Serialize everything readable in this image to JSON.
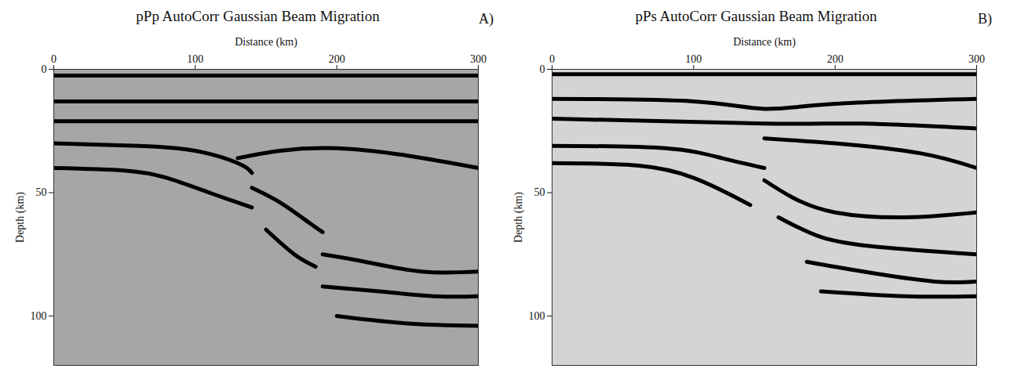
{
  "chart_data": [
    {
      "type": "line",
      "panel_label": "A)",
      "title": "pPp AutoCorr Gaussian Beam Migration",
      "xlabel": "Distance (km)",
      "ylabel": "Depth (km)",
      "xlim": [
        0,
        300
      ],
      "xticks": [
        0,
        100,
        200,
        300
      ],
      "ylim": [
        120,
        0
      ],
      "yticks": [
        0,
        50,
        100
      ],
      "series": [
        {
          "color": "#000000",
          "x": [
            0,
            300
          ],
          "values": [
            2.5,
            2.5
          ]
        },
        {
          "color": "#000000",
          "x": [
            0,
            300
          ],
          "values": [
            13,
            13
          ]
        },
        {
          "color": "#000000",
          "x": [
            0,
            300
          ],
          "values": [
            21,
            21
          ]
        },
        {
          "color": "#000000",
          "x": [
            0,
            60,
            100,
            130,
            140
          ],
          "values": [
            30,
            31,
            33,
            38,
            42
          ]
        },
        {
          "color": "#000000",
          "x": [
            0,
            50,
            80,
            110,
            130,
            140
          ],
          "values": [
            40,
            41,
            44,
            50,
            54,
            56
          ]
        },
        {
          "color": "#000000",
          "x": [
            130,
            160,
            200,
            250,
            300
          ],
          "values": [
            36,
            33,
            32,
            35,
            40
          ]
        },
        {
          "color": "#000000",
          "x": [
            140,
            160,
            180,
            190
          ],
          "values": [
            48,
            54,
            62,
            66
          ]
        },
        {
          "color": "#000000",
          "x": [
            150,
            170,
            185
          ],
          "values": [
            65,
            75,
            80
          ]
        },
        {
          "color": "#000000",
          "x": [
            190,
            220,
            260,
            300
          ],
          "values": [
            75,
            78,
            82,
            82
          ]
        },
        {
          "color": "#000000",
          "x": [
            190,
            230,
            270,
            300
          ],
          "values": [
            88,
            90,
            92,
            92
          ]
        },
        {
          "color": "#000000",
          "x": [
            200,
            250,
            300
          ],
          "values": [
            100,
            103,
            104
          ]
        }
      ]
    },
    {
      "type": "line",
      "panel_label": "B)",
      "title": "pPs AutoCorr Gaussian Beam Migration",
      "xlabel": "Distance (km)",
      "ylabel": "Depth (km)",
      "xlim": [
        0,
        300
      ],
      "xticks": [
        0,
        100,
        200,
        300
      ],
      "ylim": [
        120,
        0
      ],
      "yticks": [
        0,
        50,
        100
      ],
      "series": [
        {
          "color": "#000000",
          "x": [
            0,
            300
          ],
          "values": [
            2,
            2
          ]
        },
        {
          "color": "#000000",
          "x": [
            0,
            100,
            150,
            200,
            300
          ],
          "values": [
            12,
            13,
            16,
            14,
            12
          ]
        },
        {
          "color": "#000000",
          "x": [
            0,
            150,
            220,
            300
          ],
          "values": [
            20,
            22,
            22,
            24
          ]
        },
        {
          "color": "#000000",
          "x": [
            0,
            80,
            120,
            150
          ],
          "values": [
            31,
            32,
            36,
            40
          ]
        },
        {
          "color": "#000000",
          "x": [
            0,
            60,
            100,
            130,
            140
          ],
          "values": [
            38,
            39,
            44,
            52,
            55
          ]
        },
        {
          "color": "#000000",
          "x": [
            150,
            200,
            260,
            300
          ],
          "values": [
            28,
            30,
            34,
            40
          ]
        },
        {
          "color": "#000000",
          "x": [
            150,
            170,
            200,
            250,
            300
          ],
          "values": [
            45,
            52,
            58,
            60,
            58
          ]
        },
        {
          "color": "#000000",
          "x": [
            160,
            190,
            230,
            300
          ],
          "values": [
            60,
            68,
            72,
            75
          ]
        },
        {
          "color": "#000000",
          "x": [
            180,
            220,
            270,
            300
          ],
          "values": [
            78,
            82,
            86,
            86
          ]
        },
        {
          "color": "#000000",
          "x": [
            190,
            250,
            300
          ],
          "values": [
            90,
            92,
            92
          ]
        }
      ]
    }
  ]
}
